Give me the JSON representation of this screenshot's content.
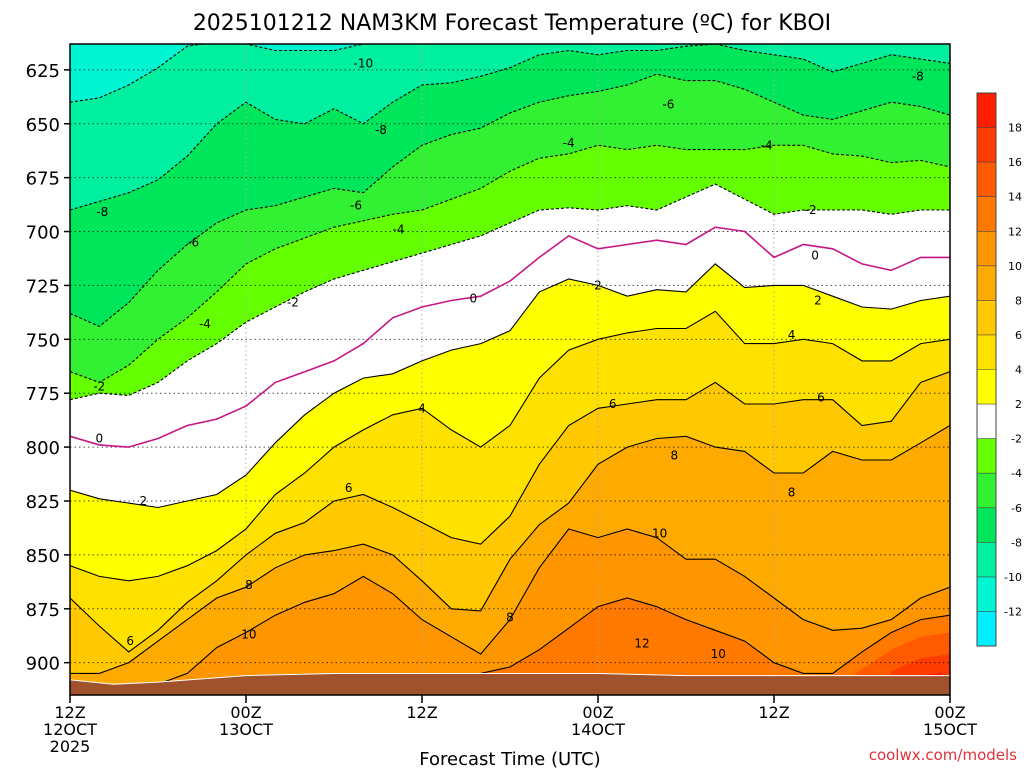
{
  "chart_data": {
    "type": "heatmap",
    "title": "2025101212 NAM3KM Forecast Temperature (ºC) for KBOI",
    "xlabel": "Forecast Time (UTC)",
    "ylabel": "",
    "credit": "coolwx.com/models",
    "y_axis": {
      "quantity": "pressure (hPa)",
      "range": [
        915,
        613
      ],
      "ticks": [
        625,
        650,
        675,
        700,
        725,
        750,
        775,
        800,
        825,
        850,
        875,
        900
      ]
    },
    "x_axis": {
      "range_hours": [
        0,
        60
      ],
      "ticks": [
        {
          "hour": 0,
          "lines": [
            "12Z",
            "12OCT",
            "2025"
          ]
        },
        {
          "hour": 12,
          "lines": [
            "00Z",
            "13OCT"
          ]
        },
        {
          "hour": 24,
          "lines": [
            "12Z"
          ]
        },
        {
          "hour": 36,
          "lines": [
            "00Z",
            "14OCT"
          ]
        },
        {
          "hour": 48,
          "lines": [
            "12Z"
          ]
        },
        {
          "hour": 60,
          "lines": [
            "00Z",
            "15OCT"
          ]
        }
      ]
    },
    "grid": true,
    "legend": {
      "placement": "right",
      "labels": [
        "18",
        "16",
        "14",
        "12",
        "10",
        "8",
        "6",
        "4",
        "2",
        "-2",
        "-4",
        "-6",
        "-8",
        "-10",
        "-12"
      ],
      "bands": [
        {
          "lo": 18,
          "hi": 20,
          "color": "#ff1e00"
        },
        {
          "lo": 16,
          "hi": 18,
          "color": "#ff3c00"
        },
        {
          "lo": 14,
          "hi": 16,
          "color": "#ff5a00"
        },
        {
          "lo": 12,
          "hi": 14,
          "color": "#ff7800"
        },
        {
          "lo": 10,
          "hi": 12,
          "color": "#ff9600"
        },
        {
          "lo": 8,
          "hi": 10,
          "color": "#ffaa00"
        },
        {
          "lo": 6,
          "hi": 8,
          "color": "#ffc800"
        },
        {
          "lo": 4,
          "hi": 6,
          "color": "#ffe100"
        },
        {
          "lo": 2,
          "hi": 4,
          "color": "#ffff00"
        },
        {
          "lo": -2,
          "hi": 2,
          "color": "#ffffff"
        },
        {
          "lo": -4,
          "hi": -2,
          "color": "#64ff00"
        },
        {
          "lo": -6,
          "hi": -4,
          "color": "#32f032"
        },
        {
          "lo": -8,
          "hi": -6,
          "color": "#00e65a"
        },
        {
          "lo": -10,
          "hi": -8,
          "color": "#00f0a0"
        },
        {
          "lo": -12,
          "hi": -10,
          "color": "#00f5d2"
        },
        {
          "lo": -14,
          "hi": -12,
          "color": "#00f0ff"
        }
      ]
    },
    "terrain": {
      "color": "#a0522d",
      "hours": [
        0,
        3,
        6,
        12,
        18,
        24,
        30,
        36,
        42,
        48,
        54,
        60
      ],
      "pressure": [
        908,
        910,
        909,
        906,
        905,
        905,
        905,
        905,
        906,
        906,
        906,
        906
      ]
    },
    "freezing_line_color": "#c71585",
    "series": [
      {
        "level": -10,
        "hours": [
          0,
          2,
          4,
          6,
          8,
          10,
          12,
          14,
          16,
          18,
          20,
          22,
          24,
          26,
          28,
          30,
          32,
          34,
          36,
          38,
          40,
          42,
          44,
          46,
          48,
          50,
          52,
          54,
          56,
          58,
          60
        ],
        "pressure": [
          640,
          638,
          632,
          624,
          614,
          612,
          613,
          616,
          616,
          616,
          613,
          613,
          613,
          613,
          613,
          613,
          613,
          613,
          613,
          613,
          613,
          613,
          613,
          613,
          613,
          613,
          613,
          613,
          613,
          613,
          613
        ]
      },
      {
        "level": -8,
        "hours": [
          0,
          2,
          4,
          6,
          8,
          10,
          12,
          14,
          16,
          18,
          20,
          22,
          24,
          26,
          28,
          30,
          32,
          34,
          36,
          38,
          40,
          42,
          44,
          46,
          48,
          50,
          52,
          54,
          56,
          58,
          60
        ],
        "pressure": [
          690,
          686,
          682,
          676,
          665,
          650,
          640,
          648,
          650,
          643,
          650,
          640,
          632,
          631,
          628,
          624,
          618,
          616,
          618,
          616,
          616,
          614,
          613,
          616,
          618,
          620,
          626,
          622,
          618,
          620,
          622
        ]
      },
      {
        "level": -6,
        "hours": [
          0,
          2,
          4,
          6,
          8,
          10,
          12,
          14,
          16,
          18,
          20,
          22,
          24,
          26,
          28,
          30,
          32,
          34,
          36,
          38,
          40,
          42,
          44,
          46,
          48,
          50,
          52,
          54,
          56,
          58,
          60
        ],
        "pressure": [
          738,
          744,
          733,
          718,
          706,
          696,
          690,
          688,
          684,
          680,
          682,
          670,
          660,
          655,
          652,
          645,
          640,
          637,
          635,
          632,
          627,
          630,
          630,
          634,
          640,
          646,
          648,
          644,
          640,
          642,
          646
        ]
      },
      {
        "level": -4,
        "hours": [
          0,
          2,
          4,
          6,
          8,
          10,
          12,
          14,
          16,
          18,
          20,
          22,
          24,
          26,
          28,
          30,
          32,
          34,
          36,
          38,
          40,
          42,
          44,
          46,
          48,
          50,
          52,
          54,
          56,
          58,
          60
        ],
        "pressure": [
          765,
          770,
          762,
          750,
          740,
          728,
          715,
          708,
          703,
          698,
          695,
          692,
          690,
          685,
          680,
          672,
          666,
          664,
          660,
          662,
          660,
          662,
          662,
          662,
          660,
          660,
          664,
          665,
          668,
          667,
          670
        ]
      },
      {
        "level": -2,
        "hours": [
          0,
          2,
          4,
          6,
          8,
          10,
          12,
          14,
          16,
          18,
          20,
          22,
          24,
          26,
          28,
          30,
          32,
          34,
          36,
          38,
          40,
          42,
          44,
          46,
          48,
          50,
          52,
          54,
          56,
          58,
          60
        ],
        "pressure": [
          778,
          775,
          776,
          770,
          760,
          752,
          742,
          735,
          728,
          722,
          718,
          714,
          710,
          706,
          702,
          696,
          690,
          689,
          690,
          688,
          690,
          684,
          678,
          685,
          692,
          690,
          690,
          690,
          692,
          690,
          690
        ]
      },
      {
        "level": 0,
        "hours": [
          0,
          2,
          4,
          6,
          8,
          10,
          12,
          14,
          16,
          18,
          20,
          22,
          24,
          26,
          28,
          30,
          32,
          34,
          36,
          38,
          40,
          42,
          44,
          46,
          48,
          50,
          52,
          54,
          56,
          58,
          60
        ],
        "pressure": [
          795,
          799,
          800,
          796,
          790,
          787,
          781,
          770,
          765,
          760,
          752,
          740,
          735,
          732,
          730,
          723,
          712,
          702,
          708,
          706,
          704,
          706,
          698,
          700,
          712,
          706,
          708,
          715,
          718,
          712,
          712
        ]
      },
      {
        "level": 2,
        "hours": [
          0,
          2,
          4,
          6,
          8,
          10,
          12,
          14,
          16,
          18,
          20,
          22,
          24,
          26,
          28,
          30,
          32,
          34,
          36,
          38,
          40,
          42,
          44,
          46,
          48,
          50,
          52,
          54,
          56,
          58,
          60
        ],
        "pressure": [
          820,
          824,
          826,
          828,
          825,
          822,
          813,
          798,
          785,
          775,
          768,
          766,
          760,
          755,
          752,
          746,
          728,
          722,
          725,
          730,
          727,
          728,
          715,
          726,
          725,
          725,
          730,
          735,
          736,
          732,
          730
        ]
      },
      {
        "level": 4,
        "hours": [
          0,
          2,
          4,
          6,
          8,
          10,
          12,
          14,
          16,
          18,
          20,
          22,
          24,
          26,
          28,
          30,
          32,
          34,
          36,
          38,
          40,
          42,
          44,
          46,
          48,
          50,
          52,
          54,
          56,
          58,
          60
        ],
        "pressure": [
          855,
          860,
          862,
          860,
          855,
          848,
          838,
          822,
          812,
          800,
          792,
          785,
          782,
          792,
          800,
          790,
          768,
          755,
          750,
          747,
          745,
          745,
          737,
          752,
          752,
          750,
          752,
          760,
          760,
          752,
          750
        ]
      },
      {
        "level": 6,
        "hours": [
          0,
          2,
          4,
          6,
          8,
          10,
          12,
          14,
          16,
          18,
          20,
          22,
          24,
          26,
          28,
          30,
          32,
          34,
          36,
          38,
          40,
          42,
          44,
          46,
          48,
          50,
          52,
          54,
          56,
          58,
          60
        ],
        "pressure": [
          870,
          883,
          895,
          885,
          872,
          862,
          850,
          840,
          835,
          825,
          822,
          828,
          835,
          842,
          845,
          832,
          808,
          790,
          782,
          780,
          778,
          778,
          770,
          780,
          780,
          778,
          778,
          790,
          788,
          770,
          765
        ]
      },
      {
        "level": 8,
        "hours": [
          0,
          2,
          4,
          6,
          8,
          10,
          12,
          14,
          16,
          18,
          20,
          22,
          24,
          26,
          28,
          30,
          32,
          34,
          36,
          38,
          40,
          42,
          44,
          46,
          48,
          50,
          52,
          54,
          56,
          58,
          60
        ],
        "pressure": [
          905,
          905,
          900,
          890,
          880,
          870,
          865,
          856,
          850,
          848,
          845,
          850,
          862,
          875,
          876,
          852,
          836,
          826,
          808,
          800,
          796,
          795,
          800,
          802,
          812,
          812,
          802,
          806,
          806,
          798,
          790
        ]
      },
      {
        "level": 10,
        "hours": [
          0,
          4,
          8,
          10,
          12,
          14,
          16,
          18,
          20,
          22,
          24,
          26,
          28,
          30,
          32,
          34,
          36,
          38,
          40,
          42,
          44,
          46,
          48,
          50,
          52,
          54,
          56,
          58,
          60
        ],
        "pressure": [
          915,
          915,
          905,
          893,
          886,
          878,
          872,
          868,
          860,
          868,
          880,
          888,
          896,
          880,
          856,
          838,
          842,
          838,
          842,
          852,
          852,
          860,
          870,
          880,
          885,
          884,
          880,
          870,
          865
        ]
      },
      {
        "level": 12,
        "hours": [
          0,
          16,
          20,
          24,
          28,
          30,
          32,
          34,
          36,
          38,
          40,
          42,
          44,
          46,
          48,
          50,
          52,
          54,
          56,
          58,
          60
        ],
        "pressure": [
          915,
          915,
          911,
          906,
          905,
          902,
          894,
          884,
          874,
          870,
          874,
          880,
          885,
          890,
          900,
          905,
          905,
          895,
          886,
          880,
          878
        ]
      }
    ],
    "contour_labels": [
      {
        "text": "-10",
        "hour": 20,
        "pressure": 622
      },
      {
        "text": "-8",
        "hour": 2.2,
        "pressure": 691
      },
      {
        "text": "-8",
        "hour": 21.2,
        "pressure": 653
      },
      {
        "text": "-8",
        "hour": 57.8,
        "pressure": 628
      },
      {
        "text": "-6",
        "hour": 8.4,
        "pressure": 705
      },
      {
        "text": "-6",
        "hour": 19.5,
        "pressure": 688
      },
      {
        "text": "-6",
        "hour": 40.8,
        "pressure": 641
      },
      {
        "text": "-4",
        "hour": 9.2,
        "pressure": 743
      },
      {
        "text": "-4",
        "hour": 22.4,
        "pressure": 699
      },
      {
        "text": "-4",
        "hour": 34,
        "pressure": 659
      },
      {
        "text": "-4",
        "hour": 47.5,
        "pressure": 660
      },
      {
        "text": "-2",
        "hour": 2,
        "pressure": 772
      },
      {
        "text": "-2",
        "hour": 15.2,
        "pressure": 733
      },
      {
        "text": "-2",
        "hour": 50.5,
        "pressure": 690
      },
      {
        "text": "0",
        "hour": 2,
        "pressure": 796
      },
      {
        "text": "0",
        "hour": 27.5,
        "pressure": 731
      },
      {
        "text": "0",
        "hour": 50.8,
        "pressure": 711
      },
      {
        "text": "2",
        "hour": 5,
        "pressure": 825
      },
      {
        "text": "2",
        "hour": 36,
        "pressure": 725
      },
      {
        "text": "2",
        "hour": 51,
        "pressure": 732
      },
      {
        "text": "4",
        "hour": 24,
        "pressure": 782
      },
      {
        "text": "4",
        "hour": 49.2,
        "pressure": 748
      },
      {
        "text": "6",
        "hour": 4.1,
        "pressure": 890
      },
      {
        "text": "6",
        "hour": 19,
        "pressure": 819
      },
      {
        "text": "6",
        "hour": 37,
        "pressure": 780
      },
      {
        "text": "6",
        "hour": 51.2,
        "pressure": 777
      },
      {
        "text": "8",
        "hour": 12.2,
        "pressure": 864
      },
      {
        "text": "8",
        "hour": 30,
        "pressure": 879
      },
      {
        "text": "8",
        "hour": 41.2,
        "pressure": 804
      },
      {
        "text": "8",
        "hour": 49.2,
        "pressure": 821
      },
      {
        "text": "10",
        "hour": 12.2,
        "pressure": 887
      },
      {
        "text": "10",
        "hour": 40.2,
        "pressure": 840
      },
      {
        "text": "10",
        "hour": 44.2,
        "pressure": 896
      },
      {
        "text": "12",
        "hour": 39,
        "pressure": 891
      }
    ]
  }
}
